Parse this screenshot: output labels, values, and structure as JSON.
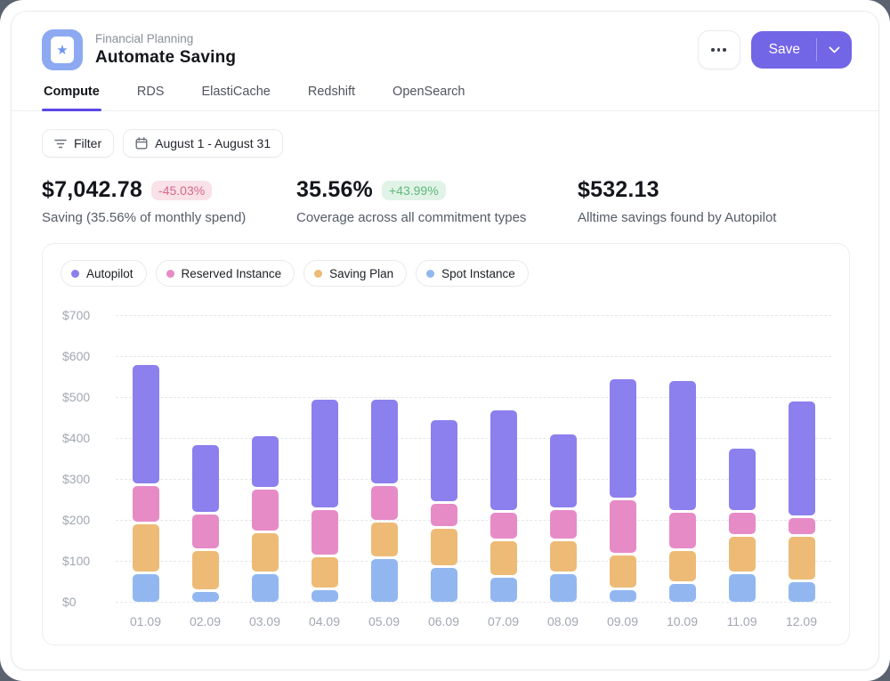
{
  "header": {
    "eyebrow": "Financial Planning",
    "title": "Automate Saving",
    "save_label": "Save"
  },
  "tabs": [
    {
      "label": "Compute",
      "active": true
    },
    {
      "label": "RDS",
      "active": false
    },
    {
      "label": "ElastiCache",
      "active": false
    },
    {
      "label": "Redshift",
      "active": false
    },
    {
      "label": "OpenSearch",
      "active": false
    }
  ],
  "filters": {
    "filter_label": "Filter",
    "date_range": "August 1 - August 31"
  },
  "kpis": [
    {
      "value": "$7,042.78",
      "delta": "-45.03%",
      "delta_direction": "down",
      "subtitle": "Saving (35.56% of monthly spend)"
    },
    {
      "value": "35.56%",
      "delta": "+43.99%",
      "delta_direction": "up",
      "subtitle": "Coverage across all commitment types"
    },
    {
      "value": "$532.13",
      "subtitle": "Alltime savings found by Autopilot"
    }
  ],
  "chart_data": {
    "type": "bar",
    "stacked": true,
    "categories": [
      "01.09",
      "02.09",
      "03.09",
      "04.09",
      "05.09",
      "06.09",
      "07.09",
      "08.09",
      "09.09",
      "10.09",
      "11.09",
      "12.09"
    ],
    "series": [
      {
        "name": "Autopilot",
        "color": "#8C7FEE",
        "values": [
          295,
          170,
          130,
          270,
          210,
          205,
          250,
          185,
          295,
          320,
          155,
          285
        ]
      },
      {
        "name": "Reserved Instance",
        "color": "#E78BC7",
        "values": [
          95,
          90,
          105,
          115,
          90,
          60,
          70,
          75,
          135,
          95,
          60,
          45
        ]
      },
      {
        "name": "Saving Plan",
        "color": "#EDBB76",
        "values": [
          120,
          100,
          100,
          80,
          90,
          95,
          90,
          80,
          85,
          80,
          90,
          110
        ]
      },
      {
        "name": "Spot Instance",
        "color": "#92B7F0",
        "values": [
          75,
          30,
          75,
          35,
          110,
          90,
          65,
          75,
          35,
          50,
          75,
          55
        ]
      }
    ],
    "stack_order_bottom_to_top": [
      "Spot Instance",
      "Saving Plan",
      "Reserved Instance",
      "Autopilot"
    ],
    "totals": [
      585,
      390,
      410,
      500,
      500,
      450,
      475,
      415,
      550,
      545,
      380,
      495
    ],
    "ylim": [
      0,
      700
    ],
    "y_tick_step": 100,
    "y_tick_prefix": "$",
    "grid": "dashed-horizontal",
    "legend_position": "top-left",
    "title": "",
    "xlabel": "",
    "ylabel": ""
  },
  "colors": {
    "accent_purple": "#7265E6",
    "tab_underline": "#5A48E8",
    "badge_down_bg": "#F9E1E8",
    "badge_down_text": "#D4688F",
    "badge_up_bg": "#E1F3E7",
    "badge_up_text": "#5FB87C",
    "app_icon_bg": "#8CA9F2",
    "window_backdrop": "#5A6270"
  }
}
